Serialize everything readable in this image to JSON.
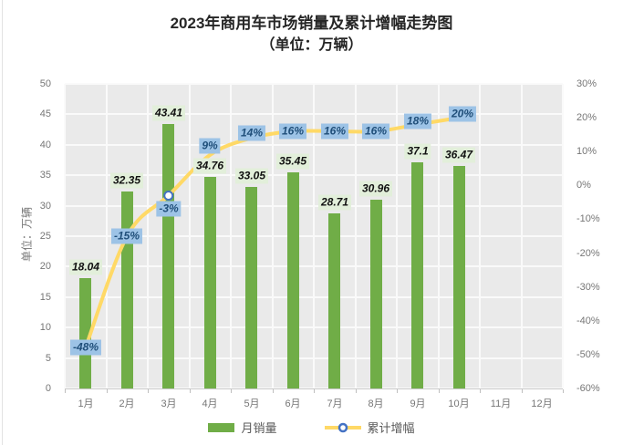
{
  "title": "2023年商用车市场销量及累计增幅走势图",
  "subtitle": "（单位：万辆）",
  "colors": {
    "bar": "#70AD47",
    "bar_label_bg": "#E2EFDA",
    "bar_label_text": "#111111",
    "line": "#FFD966",
    "line_label_bg": "#9DC3E6",
    "line_label_text": "#1F4E79",
    "marker_fill": "#FFFFFF",
    "marker_ring": "#4472C4",
    "axis_text": "#767676",
    "plot_bg": "#EAEAEA",
    "grid": "#FAFAFA",
    "axis_line": "#C8C8C8",
    "tick_mark": "#BFBFBF"
  },
  "chart_data": {
    "type": "bar",
    "title": "2023年商用车市场销量及累计增幅走势图（单位：万辆）",
    "categories": [
      "1月",
      "2月",
      "3月",
      "4月",
      "5月",
      "6月",
      "7月",
      "8月",
      "9月",
      "10月",
      "11月",
      "12月"
    ],
    "series": [
      {
        "name": "月销量",
        "type": "bar",
        "axis": "left",
        "values": [
          18.04,
          32.35,
          43.41,
          34.76,
          33.05,
          35.45,
          28.71,
          30.96,
          37.1,
          36.47,
          null,
          null
        ],
        "labels": [
          "18.04",
          "32.35",
          "43.41",
          "34.76",
          "33.05",
          "35.45",
          "28.71",
          "30.96",
          "37.1",
          "36.47"
        ]
      },
      {
        "name": "累计增幅",
        "type": "line",
        "axis": "right",
        "values": [
          -48,
          -15,
          -3,
          9,
          14,
          16,
          16,
          16,
          18,
          20,
          null,
          null
        ],
        "labels": [
          "-48%",
          "-15%",
          "-3%",
          "9%",
          "14%",
          "16%",
          "16%",
          "16%",
          "18%",
          "20%"
        ],
        "label_dy": [
          0,
          0,
          15,
          -10,
          -5,
          0,
          0,
          0,
          -4,
          -4
        ],
        "label_dx": [
          0,
          0,
          0,
          0,
          0,
          0,
          0,
          0,
          0,
          4
        ],
        "marker_visible_at": [
          2
        ]
      }
    ],
    "left_axis": {
      "title": "单位：万辆",
      "min": 0,
      "max": 50,
      "step": 5,
      "ticks": [
        "50",
        "45",
        "40",
        "35",
        "30",
        "25",
        "20",
        "15",
        "10",
        "5",
        "0"
      ]
    },
    "right_axis": {
      "min": -60,
      "max": 30,
      "step": 10,
      "ticks": [
        "30%",
        "20%",
        "10%",
        "0%",
        "-10%",
        "-20%",
        "-30%",
        "-40%",
        "-50%",
        "-60%"
      ]
    },
    "grid": true,
    "legend_position": "bottom"
  },
  "legend": {
    "items": [
      {
        "label": "月销量",
        "marker": "bar-swatch"
      },
      {
        "label": "累计增幅",
        "marker": "line-marker"
      }
    ]
  }
}
